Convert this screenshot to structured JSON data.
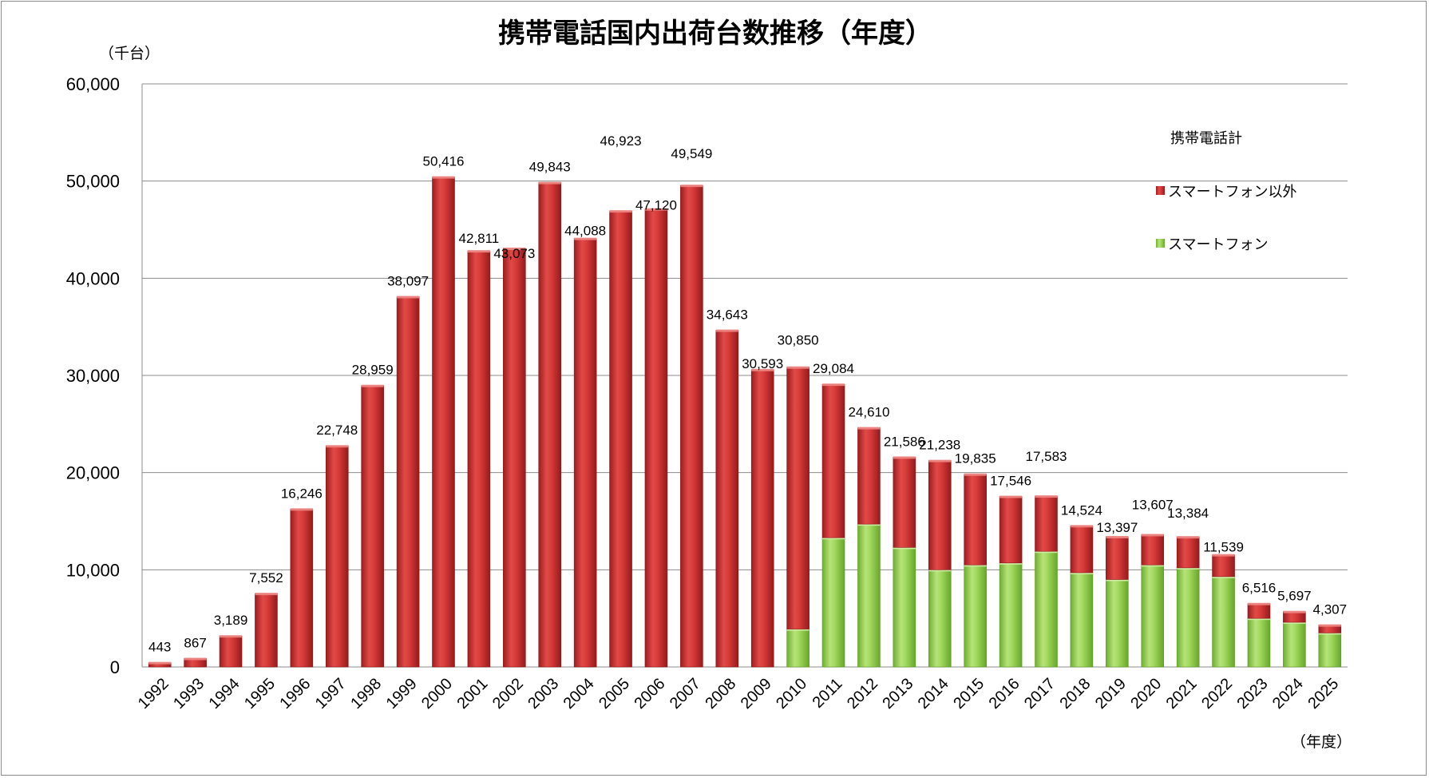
{
  "chart_data": {
    "type": "bar",
    "stacked": true,
    "title": "携帯電話国内出荷台数推移（年度）",
    "y_unit": "（千台）",
    "x_unit": "（年度）",
    "ylim": [
      0,
      60000
    ],
    "yticks": [
      "0",
      "10,000",
      "20,000",
      "30,000",
      "40,000",
      "50,000",
      "60,000"
    ],
    "grid": true,
    "legend_position": "right",
    "legend_title": "携帯電話計",
    "categories": [
      "1992",
      "1993",
      "1994",
      "1995",
      "1996",
      "1997",
      "1998",
      "1999",
      "2000",
      "2001",
      "2002",
      "2003",
      "2004",
      "2005",
      "2006",
      "2007",
      "2008",
      "2009",
      "2010",
      "2011",
      "2012",
      "2013",
      "2014",
      "2015",
      "2016",
      "2017",
      "2018",
      "2019",
      "2020",
      "2021",
      "2022",
      "2023",
      "2024",
      "2025"
    ],
    "totals": [
      443,
      867,
      3189,
      7552,
      16246,
      22748,
      28959,
      38097,
      50416,
      42811,
      43073,
      49843,
      44088,
      46923,
      47120,
      49549,
      34643,
      30593,
      30850,
      29084,
      24610,
      21586,
      21238,
      19835,
      17546,
      17583,
      14524,
      13397,
      13607,
      13384,
      11539,
      6516,
      5697,
      4307
    ],
    "total_labels": [
      "443",
      "867",
      "3,189",
      "7,552",
      "16,246",
      "22,748",
      "28,959",
      "38,097",
      "50,416",
      "42,811",
      "43,073",
      "49,843",
      "44,088",
      "46,923",
      "47,120",
      "49,549",
      "34,643",
      "30,593",
      "30,850",
      "29,084",
      "24,610",
      "21,586",
      "21,238",
      "19,835",
      "17,546",
      "17,583",
      "14,524",
      "13,397",
      "13,607",
      "13,384",
      "11,539",
      "6,516",
      "5,697",
      "4,307"
    ],
    "series": [
      {
        "name": "スマートフォン",
        "color": "#92d050",
        "values": [
          0,
          0,
          0,
          0,
          0,
          0,
          0,
          0,
          0,
          0,
          0,
          0,
          0,
          0,
          0,
          0,
          0,
          0,
          3900,
          13300,
          14700,
          12300,
          10000,
          10500,
          10700,
          11900,
          9700,
          9000,
          10500,
          10200,
          9300,
          5000,
          4600,
          3500
        ]
      },
      {
        "name": "スマートフォン以外",
        "color": "#c0282c",
        "values": [
          443,
          867,
          3189,
          7552,
          16246,
          22748,
          28959,
          38097,
          50416,
          42811,
          43073,
          49843,
          44088,
          46923,
          47120,
          49549,
          34643,
          30593,
          26950,
          15784,
          9910,
          9286,
          11238,
          9335,
          6846,
          5683,
          4824,
          4397,
          3107,
          3184,
          2239,
          1516,
          1097,
          807
        ]
      }
    ]
  }
}
